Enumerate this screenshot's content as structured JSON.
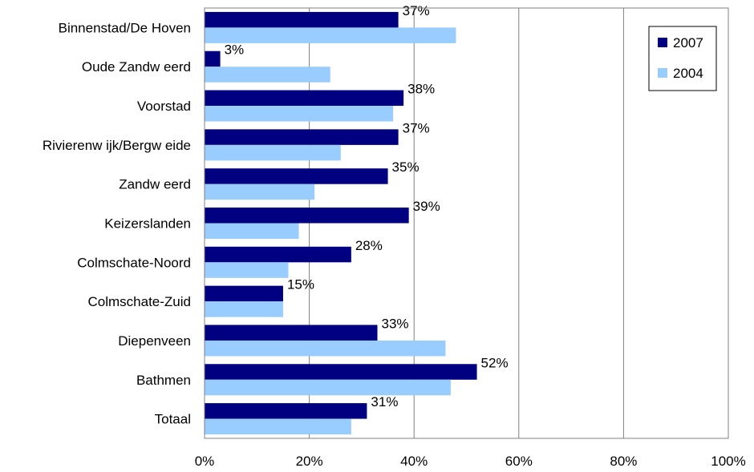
{
  "chart_data": {
    "type": "bar",
    "orientation": "horizontal",
    "categories": [
      "Binnenstad/De Hoven",
      "Oude Zandw eerd",
      "Voorstad",
      "Rivierenw ijk/Bergw eide",
      "Zandw eerd",
      "Keizerslanden",
      "Colmschate-Noord",
      "Colmschate-Zuid",
      "Diepenveen",
      "Bathmen",
      "Totaal"
    ],
    "series": [
      {
        "name": "2007",
        "color": "#000080",
        "values": [
          37,
          3,
          38,
          37,
          35,
          39,
          28,
          15,
          33,
          52,
          31
        ],
        "labels": [
          "37%",
          "3%",
          "38%",
          "37%",
          "35%",
          "39%",
          "28%",
          "15%",
          "33%",
          "52%",
          "31%"
        ]
      },
      {
        "name": "2004",
        "color": "#99CCFF",
        "values": [
          48,
          24,
          36,
          26,
          21,
          18,
          16,
          15,
          46,
          47,
          28
        ]
      }
    ],
    "xlim": [
      0,
      100
    ],
    "xticks": [
      "0%",
      "20%",
      "40%",
      "60%",
      "80%",
      "100%"
    ],
    "grid": true,
    "legend": "top-right",
    "title": "",
    "xlabel": "",
    "ylabel": ""
  }
}
